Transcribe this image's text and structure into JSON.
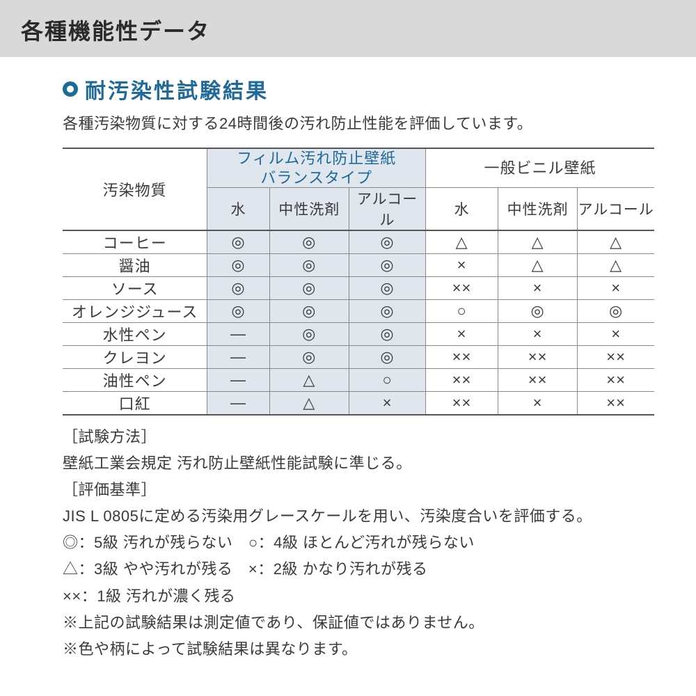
{
  "header": {
    "title": "各種機能性データ"
  },
  "section": {
    "title": "耐汚染性試験結果",
    "lead": "各種汚染物質に対する24時間後の汚れ防止性能を評価しています。"
  },
  "table": {
    "corner_label": "汚染物質",
    "group1": {
      "line1": "フィルム汚れ防止壁紙",
      "line2": "バランスタイプ"
    },
    "group2": "一般ビニル壁紙",
    "subheads": [
      "水",
      "中性洗剤",
      "アルコール",
      "水",
      "中性洗剤",
      "アルコール"
    ],
    "rows": [
      {
        "label": "コーヒー",
        "cells": [
          "◎",
          "◎",
          "◎",
          "△",
          "△",
          "△"
        ]
      },
      {
        "label": "醤油",
        "cells": [
          "◎",
          "◎",
          "◎",
          "×",
          "△",
          "△"
        ]
      },
      {
        "label": "ソース",
        "cells": [
          "◎",
          "◎",
          "◎",
          "××",
          "×",
          "×"
        ]
      },
      {
        "label": "オレンジジュース",
        "cells": [
          "◎",
          "◎",
          "◎",
          "○",
          "◎",
          "◎"
        ]
      },
      {
        "label": "水性ペン",
        "cells": [
          "―",
          "◎",
          "◎",
          "×",
          "×",
          "×"
        ]
      },
      {
        "label": "クレヨン",
        "cells": [
          "―",
          "◎",
          "◎",
          "××",
          "××",
          "××"
        ]
      },
      {
        "label": "油性ペン",
        "cells": [
          "―",
          "△",
          "○",
          "××",
          "××",
          "××"
        ]
      },
      {
        "label": "口紅",
        "cells": [
          "―",
          "△",
          "×",
          "××",
          "×",
          "××"
        ]
      }
    ],
    "colors": {
      "blue_text": "#206a9a",
      "blue_bg": "#dfe6ee",
      "rule_thick": "#555555",
      "rule_thin": "#888888",
      "background": "#ffffff",
      "header_bar": "#d9d9d9",
      "body_text": "#3a3a3a"
    }
  },
  "notes": {
    "method_label": "［試験方法］",
    "method_text": "壁紙工業会規定 汚れ防止壁紙性能試験に準じる。",
    "criteria_label": "［評価基準］",
    "criteria_text": "JIS L 0805に定める汚染用グレースケールを用い、汚染度合いを評価する。",
    "legend1": "◎：5級 汚れが残らない　○：4級 ほとんど汚れが残らない",
    "legend2": "△：3級 やや汚れが残る　×：2級 かなり汚れが残る",
    "legend3": "××：1級 汚れが濃く残る",
    "note1": "※上記の試験結果は測定値であり、保証値ではありません。",
    "note2": "※色や柄によって試験結果は異なります。"
  }
}
